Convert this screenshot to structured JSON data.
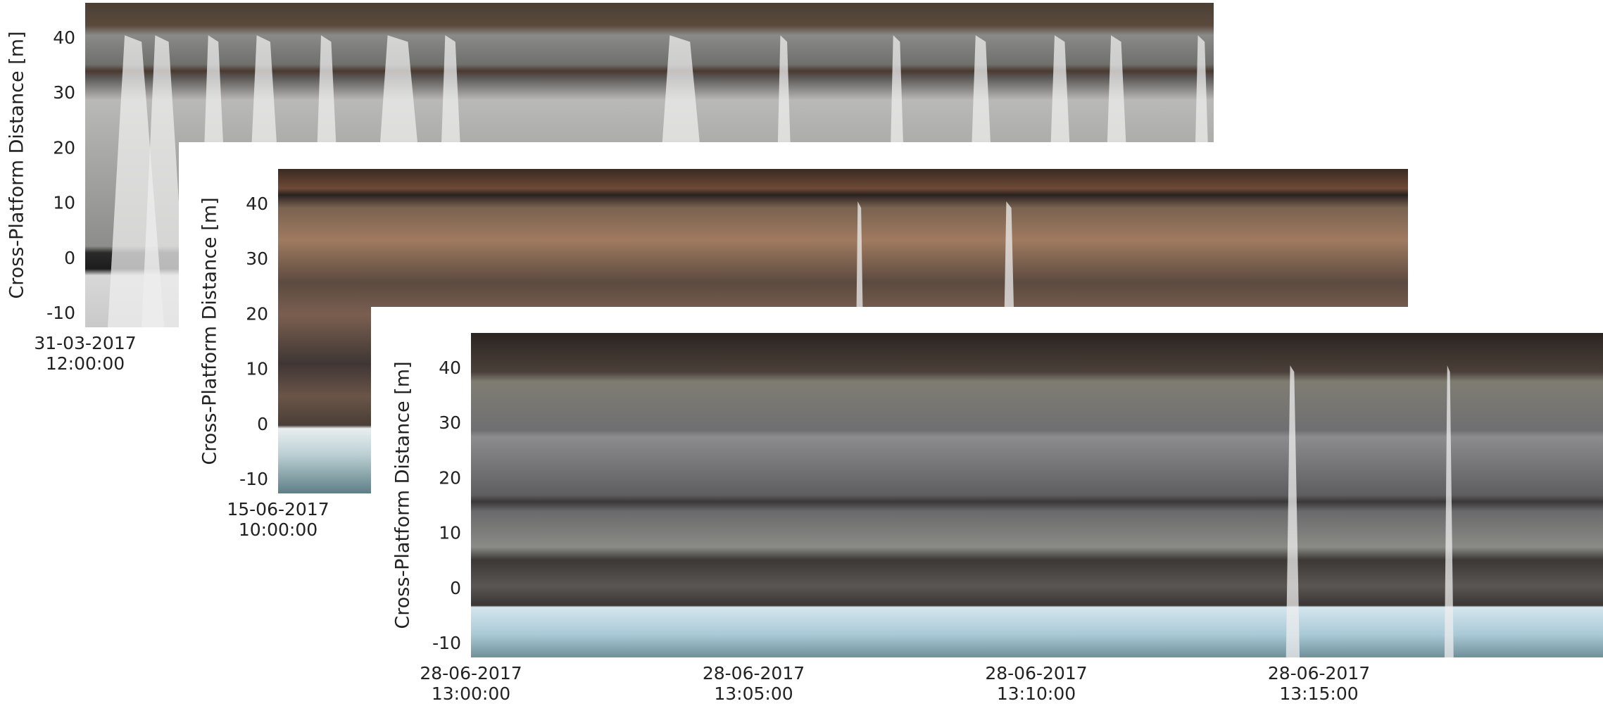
{
  "chart_data": [
    {
      "type": "image",
      "ylabel": "Cross-Platform Distance [m]",
      "ylim": [
        -12.4,
        46.5
      ],
      "yticks": [
        -10,
        0,
        10,
        20,
        30,
        40
      ],
      "xticks": [
        {
          "date": "31-03-2017",
          "time": "12:00:00"
        }
      ]
    },
    {
      "type": "image",
      "ylabel": "Cross-Platform Distance [m]",
      "ylim": [
        -12.4,
        46.5
      ],
      "yticks": [
        -10,
        0,
        10,
        20,
        30,
        40
      ],
      "xticks": [
        {
          "date": "15-06-2017",
          "time": "10:00:00"
        }
      ]
    },
    {
      "type": "image",
      "ylabel": "Cross-Platform Distance [m]",
      "ylim": [
        -12.4,
        46.5
      ],
      "yticks": [
        -10,
        0,
        10,
        20,
        30,
        40
      ],
      "xticks": [
        {
          "date": "28-06-2017",
          "time": "13:00:00"
        },
        {
          "date": "28-06-2017",
          "time": "13:05:00"
        },
        {
          "date": "28-06-2017",
          "time": "13:10:00"
        },
        {
          "date": "28-06-2017",
          "time": "13:15:00"
        }
      ]
    }
  ]
}
